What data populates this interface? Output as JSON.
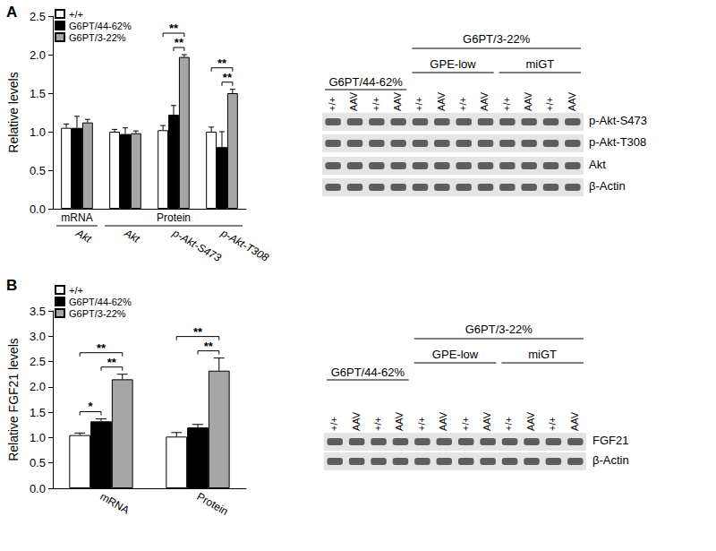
{
  "chart_data": [
    {
      "type": "bar",
      "title": "A",
      "ylabel": "Relative levels",
      "categories": [
        "Akt",
        "Akt",
        "p-Akt-S473",
        "p-Akt-T308"
      ],
      "category_groups": [
        "mRNA",
        "Protein",
        "Protein",
        "Protein"
      ],
      "series": [
        {
          "name": "+/+",
          "color": "#ffffff",
          "values": [
            1.05,
            1.0,
            1.02,
            1.0
          ],
          "errors": [
            0.05,
            0.03,
            0.06,
            0.06
          ]
        },
        {
          "name": "G6PT/44-62%",
          "color": "#000000",
          "values": [
            1.05,
            0.97,
            1.22,
            0.8
          ],
          "errors": [
            0.15,
            0.08,
            0.12,
            0.2
          ]
        },
        {
          "name": "G6PT/3-22%",
          "color": "#a6a6a6",
          "values": [
            1.12,
            0.98,
            1.97,
            1.5
          ],
          "errors": [
            0.04,
            0.03,
            0.03,
            0.05
          ]
        }
      ],
      "ylim": [
        0,
        2.5
      ],
      "yticks": [
        {
          "value": 0,
          "label": "0.0"
        },
        {
          "value": 0.5,
          "label": "0.5"
        },
        {
          "value": 1,
          "label": "1.0"
        },
        {
          "value": 1.5,
          "label": "1.5"
        },
        {
          "value": 2,
          "label": "2.0"
        },
        {
          "value": 2.5,
          "label": "2.5"
        }
      ],
      "grid": false,
      "legend": "upper left",
      "significance": [
        {
          "category": 2,
          "from": "G6PT/44-62%",
          "to": "G6PT/3-22%",
          "label": "**"
        },
        {
          "category": 2,
          "from": "+/+",
          "to": "G6PT/3-22%",
          "label": "**"
        },
        {
          "category": 3,
          "from": "G6PT/44-62%",
          "to": "G6PT/3-22%",
          "label": "**"
        },
        {
          "category": 3,
          "from": "+/+",
          "to": "G6PT/3-22%",
          "label": "**"
        }
      ]
    },
    {
      "type": "bar",
      "title": "B",
      "ylabel": "Relative FGF21 levels",
      "categories": [
        "mRNA",
        "Protein"
      ],
      "series": [
        {
          "name": "+/+",
          "color": "#ffffff",
          "values": [
            1.05,
            1.02
          ],
          "errors": [
            0.04,
            0.08
          ]
        },
        {
          "name": "G6PT/44-62%",
          "color": "#000000",
          "values": [
            1.32,
            1.2
          ],
          "errors": [
            0.05,
            0.06
          ]
        },
        {
          "name": "G6PT/3-22%",
          "color": "#a6a6a6",
          "values": [
            2.15,
            2.32
          ],
          "errors": [
            0.1,
            0.25
          ]
        }
      ],
      "ylim": [
        0,
        3.5
      ],
      "yticks": [
        {
          "value": 0,
          "label": "0.0"
        },
        {
          "value": 0.5,
          "label": "0.5"
        },
        {
          "value": 1,
          "label": "1.0"
        },
        {
          "value": 1.5,
          "label": "1.5"
        },
        {
          "value": 2,
          "label": "2.0"
        },
        {
          "value": 2.5,
          "label": "2.5"
        },
        {
          "value": 3,
          "label": "3.0"
        },
        {
          "value": 3.5,
          "label": "3.5"
        }
      ],
      "grid": false,
      "legend": "upper left",
      "significance": [
        {
          "category": 0,
          "from": "+/+",
          "to": "G6PT/44-62%",
          "label": "*"
        },
        {
          "category": 0,
          "from": "G6PT/44-62%",
          "to": "G6PT/3-22%",
          "label": "**"
        },
        {
          "category": 0,
          "from": "+/+",
          "to": "G6PT/3-22%",
          "label": "**"
        },
        {
          "category": 1,
          "from": "G6PT/44-62%",
          "to": "G6PT/3-22%",
          "label": "**"
        },
        {
          "category": 1,
          "from": "+/+",
          "to": "G6PT/3-22%",
          "label": "**"
        }
      ]
    }
  ],
  "blots": [
    {
      "groups": [
        {
          "label": "G6PT/44-62%",
          "lanes": [
            "+/+",
            "AAV",
            "+/+",
            "AAV"
          ]
        },
        {
          "label": "G6PT/3-22%",
          "subgroups": [
            {
              "label": "GPE-low",
              "lanes": [
                "+/+",
                "AAV",
                "+/+",
                "AAV"
              ]
            },
            {
              "label": "miGT",
              "lanes": [
                "+/+",
                "AAV",
                "+/+",
                "AAV"
              ]
            }
          ]
        }
      ],
      "rows": [
        "p-Akt-S473",
        "p-Akt-T308",
        "Akt",
        "β-Actin"
      ]
    },
    {
      "groups": [
        {
          "label": "G6PT/44-62%",
          "lanes": [
            "+/+",
            "AAV",
            "+/+",
            "AAV"
          ]
        },
        {
          "label": "G6PT/3-22%",
          "subgroups": [
            {
              "label": "GPE-low",
              "lanes": [
                "+/+",
                "AAV",
                "+/+",
                "AAV"
              ]
            },
            {
              "label": "miGT",
              "lanes": [
                "+/+",
                "AAV",
                "+/+",
                "AAV"
              ]
            }
          ]
        }
      ],
      "rows": [
        "FGF21",
        "β-Actin"
      ]
    }
  ]
}
